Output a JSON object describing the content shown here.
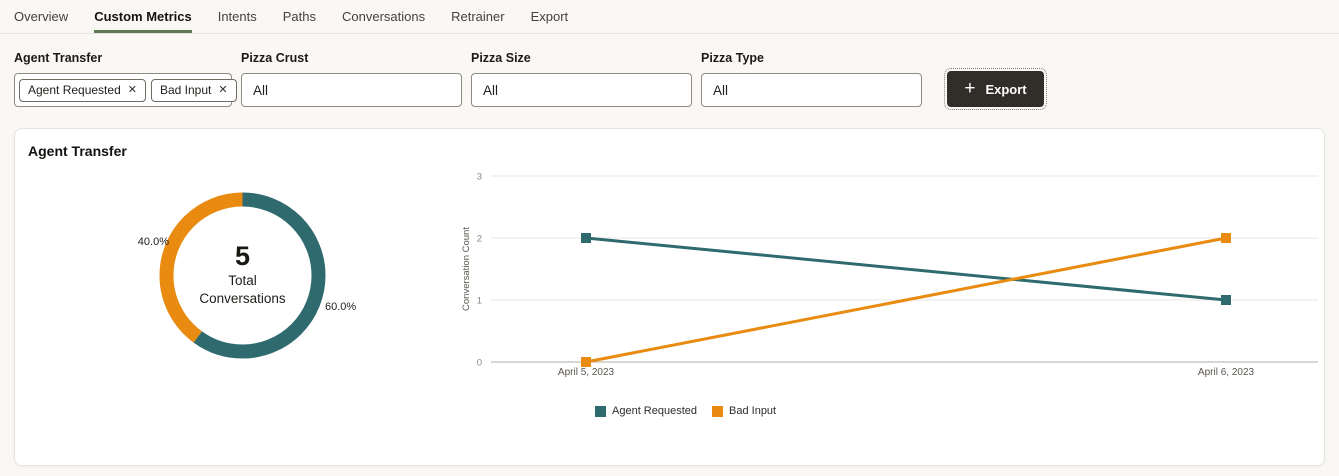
{
  "tabs": {
    "items": [
      {
        "label": "Overview",
        "active": false
      },
      {
        "label": "Custom Metrics",
        "active": true
      },
      {
        "label": "Intents",
        "active": false
      },
      {
        "label": "Paths",
        "active": false
      },
      {
        "label": "Conversations",
        "active": false
      },
      {
        "label": "Retrainer",
        "active": false
      },
      {
        "label": "Export",
        "active": false
      }
    ]
  },
  "icons": {
    "remove": "✕",
    "plus": "+"
  },
  "filters": {
    "groups": [
      {
        "label": "Agent Transfer",
        "chips": [
          "Agent Requested",
          "Bad Input"
        ]
      },
      {
        "label": "Pizza Crust",
        "value": "All"
      },
      {
        "label": "Pizza Size",
        "value": "All"
      },
      {
        "label": "Pizza Type",
        "value": "All"
      }
    ]
  },
  "export_button": {
    "label": "Export"
  },
  "card": {
    "title": "Agent Transfer"
  },
  "colors": {
    "teal": "#2e6a6e",
    "orange": "#e88b10",
    "tab_underline_green": "#5d7a52",
    "export_button_bg": "#312e2a",
    "gridline": "#eae7e3",
    "axis_line": "#b3afa9"
  },
  "chart_data": [
    {
      "type": "pie",
      "title": "Agent Transfer",
      "labels": [
        "Agent Requested",
        "Bad Input"
      ],
      "values": [
        60.0,
        40.0
      ],
      "value_labels": [
        "60.0%",
        "40.0%"
      ],
      "colors": [
        "#2e6a6e",
        "#e88b10"
      ],
      "center_value": "5",
      "center_label_lines": [
        "Total",
        "Conversations"
      ],
      "donut": true,
      "start_angle": "top-clockwise"
    },
    {
      "type": "line",
      "x": [
        "April 5, 2023",
        "April 6, 2023"
      ],
      "series": [
        {
          "name": "Agent Requested",
          "values": [
            2,
            1
          ],
          "color": "#2e6a6e"
        },
        {
          "name": "Bad Input",
          "values": [
            0,
            2
          ],
          "color": "#e88b10"
        }
      ],
      "ylabel": "Conversation Count",
      "xlabel": "",
      "yticks": [
        0,
        1,
        2,
        3
      ],
      "ylim": [
        0,
        3
      ],
      "grid": true,
      "marker": "square",
      "legend_position": "bottom"
    }
  ]
}
